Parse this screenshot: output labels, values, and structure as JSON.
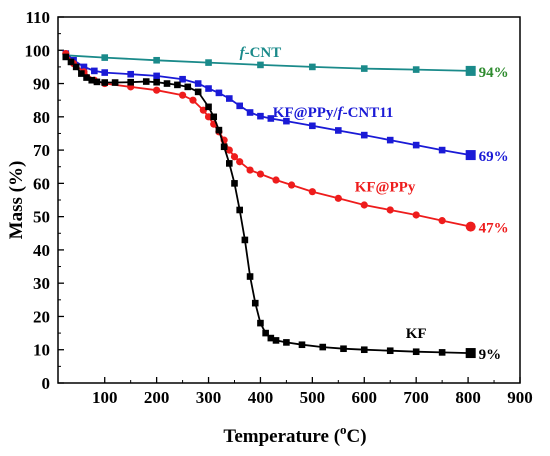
{
  "chart_data": {
    "type": "line",
    "xlabel": "Temperature (",
    "xlabel_sup": "o",
    "xlabel_unit": "C)",
    "ylabel": "Mass (%)",
    "xlim": [
      10,
      900
    ],
    "ylim": [
      0,
      110
    ],
    "xticks": [
      100,
      200,
      300,
      400,
      500,
      600,
      700,
      800,
      900
    ],
    "yticks": [
      0,
      10,
      20,
      30,
      40,
      50,
      60,
      70,
      80,
      90,
      100,
      110
    ],
    "grid": false,
    "series": [
      {
        "name": "f-CNT",
        "color": "#1a8a8a",
        "label_color": "#1a8a8a",
        "end_label": "94%",
        "end_label_color": "#2e8b2e",
        "marker": "square",
        "x": [
          25,
          100,
          200,
          300,
          400,
          500,
          600,
          700,
          805
        ],
        "y": [
          98.5,
          97.8,
          97.0,
          96.3,
          95.6,
          95.0,
          94.5,
          94.2,
          93.8
        ]
      },
      {
        "name": "KF@PPy/f-CNT11",
        "color": "#1a1ad6",
        "label_color": "#1a1ad6",
        "end_label": "69%",
        "end_label_color": "#1a1ad6",
        "marker": "square",
        "x": [
          25,
          40,
          60,
          80,
          100,
          150,
          200,
          250,
          280,
          300,
          320,
          340,
          360,
          380,
          400,
          420,
          450,
          500,
          550,
          600,
          650,
          700,
          750,
          805
        ],
        "y": [
          99,
          97,
          95,
          93.8,
          93.3,
          92.8,
          92.3,
          91.3,
          90,
          88.5,
          87.2,
          85.5,
          83.3,
          81.3,
          80.2,
          79.5,
          78.7,
          77.3,
          75.9,
          74.5,
          73.0,
          71.5,
          70.0,
          68.5
        ]
      },
      {
        "name": "KF@PPy",
        "color": "#ee1c1c",
        "label_color": "#ee1c1c",
        "end_label": "47%",
        "end_label_color": "#ee1c1c",
        "marker": "circle",
        "x": [
          25,
          40,
          60,
          80,
          100,
          150,
          200,
          250,
          270,
          290,
          300,
          310,
          320,
          330,
          340,
          350,
          360,
          380,
          400,
          430,
          460,
          500,
          550,
          600,
          650,
          700,
          750,
          805
        ],
        "y": [
          99,
          96,
          93.5,
          91,
          90,
          89,
          88,
          86.5,
          85,
          82,
          80,
          77.8,
          75.5,
          73,
          70,
          68,
          66.5,
          64,
          62.8,
          61,
          59.5,
          57.5,
          55.5,
          53.5,
          52,
          50.5,
          48.8,
          47
        ]
      },
      {
        "name": "KF",
        "color": "#000000",
        "label_color": "#000000",
        "end_label": "9%",
        "end_label_color": "#000000",
        "marker": "square",
        "x": [
          25,
          35,
          45,
          55,
          65,
          75,
          85,
          100,
          120,
          150,
          180,
          200,
          220,
          240,
          260,
          280,
          300,
          310,
          320,
          330,
          340,
          350,
          360,
          370,
          380,
          390,
          400,
          410,
          420,
          430,
          450,
          480,
          520,
          560,
          600,
          650,
          700,
          750,
          805
        ],
        "y": [
          98,
          96.5,
          95,
          93,
          91.8,
          91,
          90.5,
          90.3,
          90.3,
          90.4,
          90.6,
          90.4,
          90,
          89.6,
          89,
          87.5,
          83,
          80,
          76,
          71,
          66,
          60,
          52,
          43,
          32,
          24,
          18,
          15,
          13.5,
          12.8,
          12.2,
          11.5,
          10.8,
          10.3,
          10,
          9.7,
          9.4,
          9.2,
          9
        ]
      }
    ],
    "annotations": [
      {
        "series": "f-CNT",
        "italic_prefix": "f",
        "text": "-CNT",
        "x": 400,
        "y": 98
      },
      {
        "series": "KF@PPy/f-CNT11",
        "text_before": "KF@PPy/",
        "italic": "f",
        "text_after": "-CNT11",
        "x": 540,
        "y": 80
      },
      {
        "series": "KF@PPy",
        "text": "KF@PPy",
        "x": 640,
        "y": 57.5
      },
      {
        "series": "KF",
        "text": "KF",
        "x": 700,
        "y": 13.5
      }
    ]
  }
}
